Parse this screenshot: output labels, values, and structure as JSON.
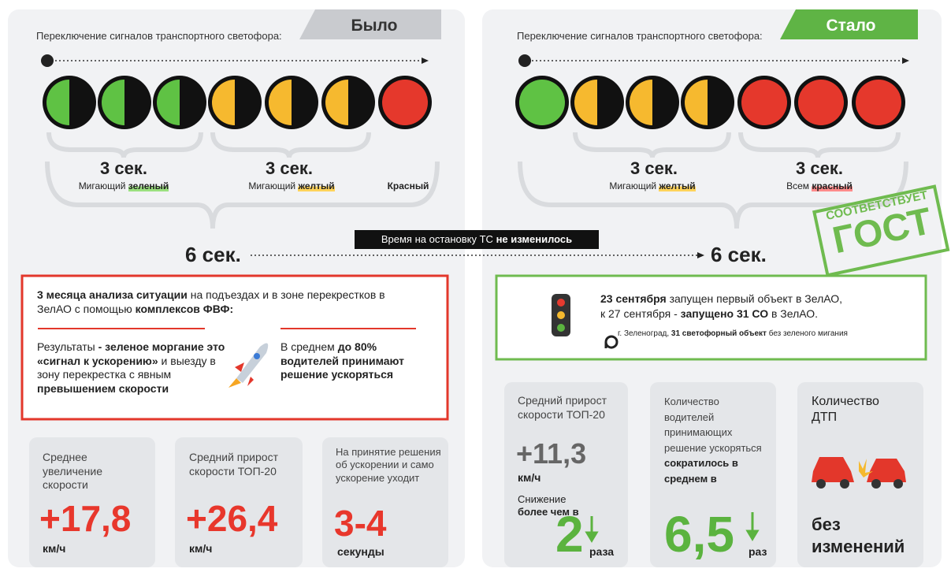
{
  "left": {
    "tag": "Было",
    "caption": "Переключение сигналов транспортного светофора:",
    "phases": [
      {
        "duration": "3 сек.",
        "label": [
          "Мигающий ",
          "зеленый"
        ]
      },
      {
        "duration": "3 сек.",
        "label": [
          "Мигающий ",
          "желтый"
        ]
      }
    ],
    "red_label": "Красный",
    "total": "6 сек.",
    "analysis": {
      "intro": [
        "3 месяца анализа ситуации",
        " на подъездах и в зоне перекрестков в ЗелАО с помощью ",
        "комплексов ФВФ:"
      ],
      "results": [
        "Результаты ",
        "- зеленое моргание это «сигнал к ускорению»",
        " и выезду в зону перекрестка с явным ",
        "превышением скорости"
      ],
      "average": [
        "В среднем ",
        "до 80% водителей принимают решение ускоряться"
      ]
    },
    "stats": [
      {
        "label": "Среднее увеличение скорости",
        "value": "+17,8",
        "unit": "км/ч"
      },
      {
        "label": "Средний прирост скорости ТОП-20",
        "value": "+26,4",
        "unit": "км/ч"
      },
      {
        "label": "На принятие решения об ускорении и само ускорение уходит",
        "value": "3-4",
        "unit": "секунды"
      }
    ]
  },
  "center_note": [
    "Время на остановку ТС ",
    "не изменилось"
  ],
  "right": {
    "tag": "Стало",
    "caption": "Переключение сигналов транспортного светофора:",
    "phases": [
      {
        "duration": "3 сек.",
        "label": [
          "Мигающий ",
          "желтый"
        ]
      },
      {
        "duration": "3 сек.",
        "label": [
          "Всем ",
          "красный"
        ]
      }
    ],
    "total": "6 сек.",
    "stamp": [
      "СООТВЕТСТВУЕТ",
      "ГОСТ"
    ],
    "launch": {
      "line1": [
        "23 сентября",
        " запущен первый объект в ЗелАО,"
      ],
      "line2": [
        "к 27 сентября - ",
        "запущено 31 СО",
        " в ЗелАО."
      ],
      "location": [
        "г. Зеленоград, ",
        "31 светофорный объект",
        " без зеленого мигания"
      ]
    },
    "stats": [
      {
        "label": "Средний прирост скорости ТОП-20",
        "value": "+11,3",
        "unit": "км/ч",
        "note": [
          "Снижение ",
          "более чем в"
        ],
        "note_value": "2",
        "note_unit": "раза"
      },
      {
        "label": [
          "Количество водителей принимающих решение ускоряться ",
          "сократилось в среднем в"
        ],
        "value": "6,5",
        "unit": "раз"
      },
      {
        "label": "Количество ДТП",
        "value": "без изменений"
      }
    ]
  }
}
